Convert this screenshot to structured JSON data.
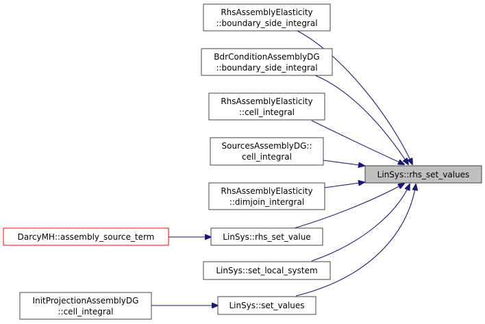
{
  "graph": {
    "target": {
      "label": "LinSys::rhs_set_values",
      "fill": "#bfbfbf"
    },
    "nodes": [
      {
        "line1": "RhsAssemblyElasticity",
        "line2": "::boundary_side_integral"
      },
      {
        "line1": "BdrConditionAssemblyDG",
        "line2": "::boundary_side_integral"
      },
      {
        "line1": "RhsAssemblyElasticity",
        "line2": "::cell_integral"
      },
      {
        "line1": "SourcesAssemblyDG::",
        "line2": "cell_integral"
      },
      {
        "line1": "RhsAssemblyElasticity",
        "line2": "::dimjoin_intergral"
      },
      {
        "label": "LinSys::rhs_set_value"
      },
      {
        "label": "LinSys::set_local_system"
      },
      {
        "label": "LinSys::set_values"
      },
      {
        "label": "DarcyMH::assembly_source_term",
        "border": "#ff0000"
      },
      {
        "line1": "InitProjectionAssemblyDG",
        "line2": "::cell_integral"
      }
    ],
    "edge_color": "#191970"
  }
}
